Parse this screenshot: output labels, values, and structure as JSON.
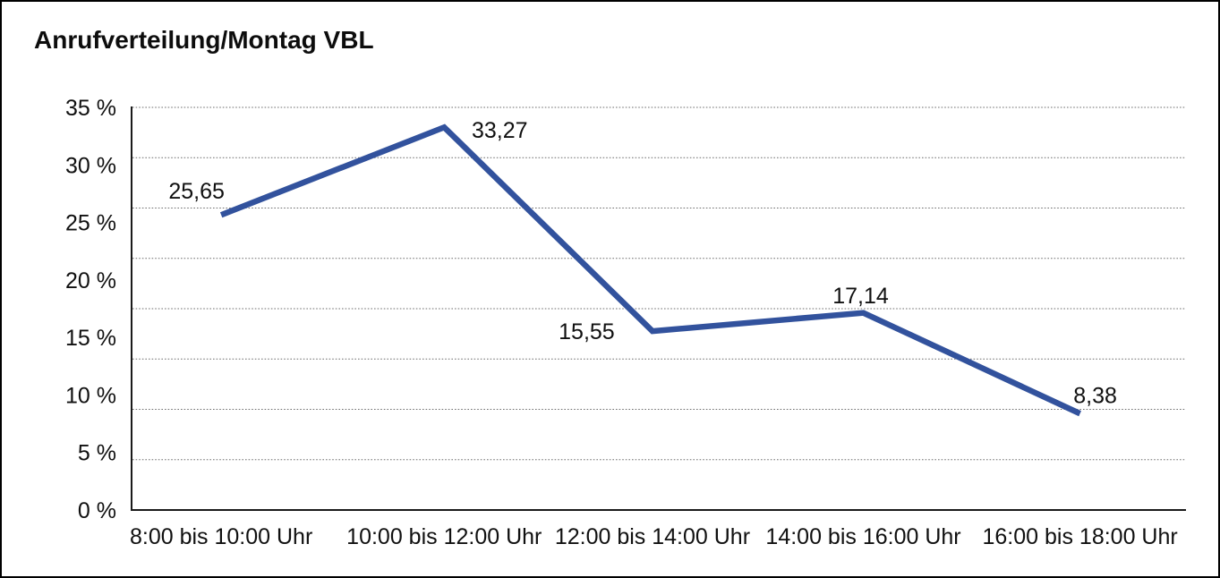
{
  "window": {
    "background": "#ffffff",
    "border_color": "#000000"
  },
  "title": "Anrufverteilung/Montag VBL",
  "chart_data": {
    "type": "line",
    "title": "Anrufverteilung/Montag VBL",
    "categories": [
      "8:00 bis 10:00 Uhr",
      "10:00 bis 12:00 Uhr",
      "12:00 bis 14:00 Uhr",
      "14:00 bis 16:00 Uhr",
      "16:00 bis 18:00 Uhr"
    ],
    "values": [
      25.65,
      33.27,
      15.55,
      17.14,
      8.38
    ],
    "point_labels": [
      "25,65",
      "33,27",
      "15,55",
      "17,14",
      "8,38"
    ],
    "xlabel": "",
    "ylabel": "",
    "ylim": [
      0,
      35
    ],
    "ytick_values": [
      0,
      5,
      10,
      15,
      20,
      25,
      30,
      35
    ],
    "ytick_labels": [
      "0 %",
      "5 %",
      "10 %",
      "15 %",
      "20 %",
      "25 %",
      "30 %",
      "35 %"
    ],
    "grid": "horizontal-dotted",
    "gridline_levels": 9,
    "legend": "none",
    "line_color": "#32529D",
    "line_width": 6.5,
    "axis_color": "#1a1a1a",
    "gridline_color": "#6e6e6e",
    "text_color": "#101010"
  }
}
